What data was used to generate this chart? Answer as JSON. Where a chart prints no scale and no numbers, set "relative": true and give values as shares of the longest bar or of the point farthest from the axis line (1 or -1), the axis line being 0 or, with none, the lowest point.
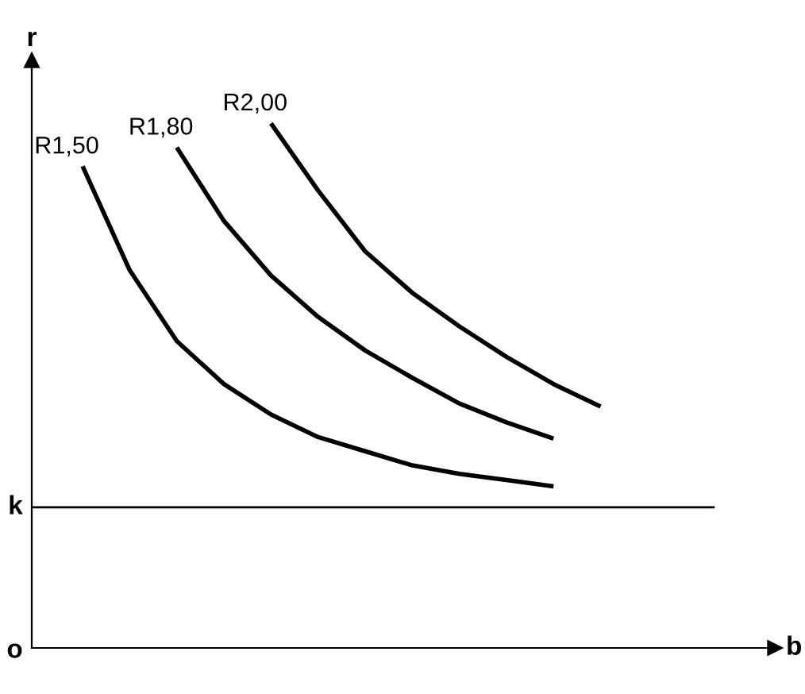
{
  "chart_data": {
    "type": "line",
    "relative": true,
    "ylabel": "r",
    "annotations": [
      "o",
      "b"
    ],
    "marker": "none",
    "line_style": "solid",
    "categories": [
      null,
      null,
      null,
      null,
      null,
      null,
      null,
      null,
      null,
      null,
      null,
      null
    ],
    "series": [
      {
        "name": "R1,50",
        "color": "#000000",
        "values": [
          0.918,
          0.72,
          0.585,
          0.503,
          0.445,
          0.402,
          0.375,
          0.348,
          0.332,
          0.32,
          0.308,
          null
        ]
      },
      {
        "name": "R1,80",
        "color": "#000000",
        "values": [
          null,
          null,
          0.954,
          0.814,
          0.71,
          0.631,
          0.567,
          0.515,
          0.466,
          0.43,
          0.399,
          null
        ]
      },
      {
        "name": "R2,00",
        "color": "#000000",
        "values": [
          null,
          null,
          null,
          null,
          1,
          0.872,
          0.756,
          0.677,
          0.613,
          0.555,
          0.503,
          0.46
        ]
      }
    ],
    "ref_lines": [
      {
        "axis": "y",
        "value": 0.268,
        "label": "k",
        "color": "#000000"
      }
    ]
  }
}
